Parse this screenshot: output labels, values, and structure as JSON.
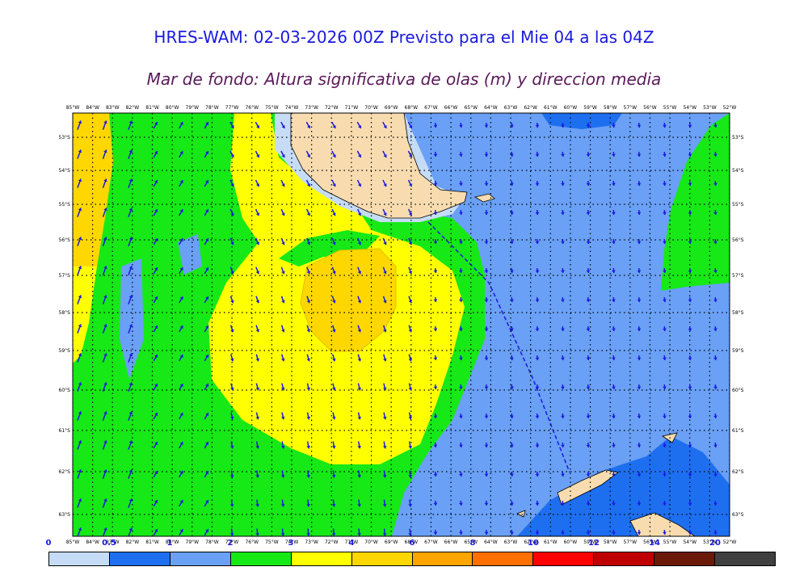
{
  "title": "HRES-WAM: 02-03-2026 00Z Previsto para el Mie 04 a las 04Z",
  "subtitle": "Mar de fondo: Altura significativa de olas (m) y direccion media",
  "lon_labels": [
    "85°W",
    "84°W",
    "83°W",
    "82°W",
    "81°W",
    "80°W",
    "79°W",
    "78°W",
    "77°W",
    "76°W",
    "75°W",
    "74°W",
    "73°W",
    "72°W",
    "71°W",
    "70°W",
    "69°W",
    "68°W",
    "67°W",
    "66°W",
    "65°W",
    "64°W",
    "63°W",
    "62°W",
    "61°W",
    "60°W",
    "59°W",
    "58°W",
    "57°W",
    "56°W",
    "55°W",
    "54°W",
    "53°W",
    "52°W"
  ],
  "lat_labels": [
    "53°S",
    "54°S",
    "55°S",
    "56°S",
    "57°S",
    "58°S",
    "59°S",
    "60°S",
    "61°S",
    "62°S",
    "63°S"
  ],
  "legend": {
    "ticks": [
      "0",
      "0.5",
      "1",
      "2",
      "3",
      "4",
      "6",
      "8",
      "10",
      "12",
      "14",
      "20"
    ],
    "colors": [
      "#c6dcf6",
      "#1e6ff0",
      "#6aa0f5",
      "#16e916",
      "#ffff00",
      "#ffd700",
      "#ffa500",
      "#ff7000",
      "#ff0000",
      "#c00000",
      "#6b1a0a",
      "#404040"
    ]
  },
  "map_colors": {
    "land": "#f8dcb0",
    "sea_light": "#6aa0f5",
    "sea_dark": "#1e6ff0",
    "sea_pale": "#c6dcf6",
    "green": "#16e916",
    "yellow": "#ffff00",
    "gold": "#ffd700",
    "arrow": "#1a1adf"
  },
  "map_range": {
    "lon": [
      -85,
      -52
    ],
    "lat": [
      -52.7,
      -63.5
    ]
  }
}
